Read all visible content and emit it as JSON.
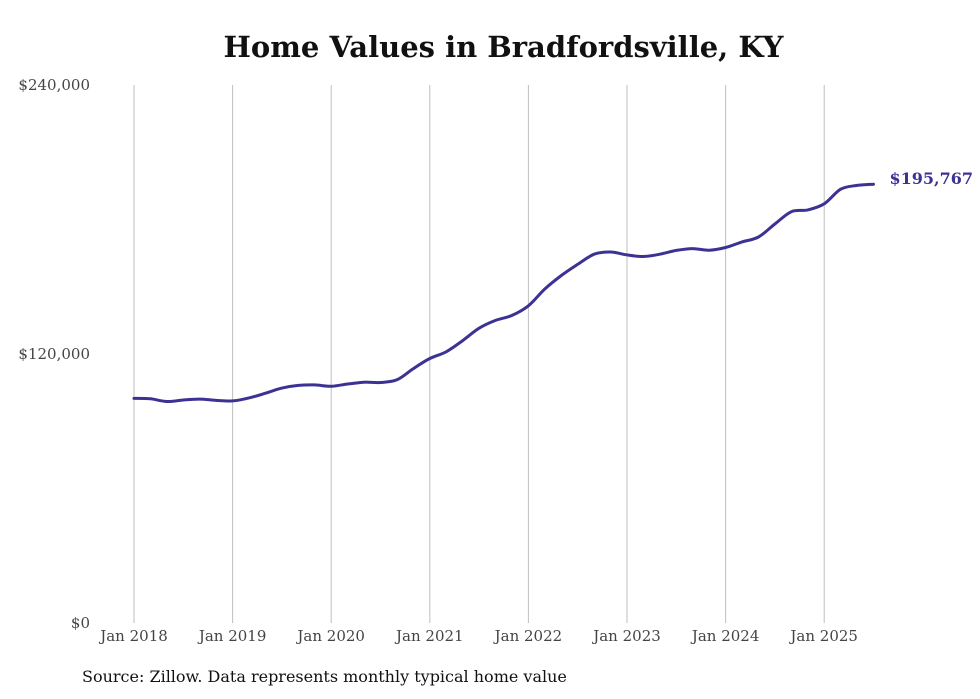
{
  "chart_data": {
    "type": "line",
    "title": "Home Values in Bradfordsville, KY",
    "xlabel": "",
    "ylabel": "",
    "ylim": [
      0,
      240000
    ],
    "xlim": [
      "2018-01",
      "2025-07"
    ],
    "y_ticks": [
      {
        "value": 0,
        "label": "$0"
      },
      {
        "value": 120000,
        "label": "$120,000"
      },
      {
        "value": 240000,
        "label": "$240,000"
      }
    ],
    "x_ticks": [
      {
        "value": "2018-01",
        "label": "Jan 2018"
      },
      {
        "value": "2019-01",
        "label": "Jan 2019"
      },
      {
        "value": "2020-01",
        "label": "Jan 2020"
      },
      {
        "value": "2021-01",
        "label": "Jan 2021"
      },
      {
        "value": "2022-01",
        "label": "Jan 2022"
      },
      {
        "value": "2023-01",
        "label": "Jan 2023"
      },
      {
        "value": "2024-01",
        "label": "Jan 2024"
      },
      {
        "value": "2025-01",
        "label": "Jan 2025"
      }
    ],
    "grid": "vertical",
    "color": "#3b3294",
    "end_label": "$195,767",
    "series": [
      {
        "points": [
          [
            "2018-01",
            100200
          ],
          [
            "2018-03",
            100000
          ],
          [
            "2018-05",
            98800
          ],
          [
            "2018-07",
            99500
          ],
          [
            "2018-09",
            99900
          ],
          [
            "2018-11",
            99300
          ],
          [
            "2019-01",
            99100
          ],
          [
            "2019-03",
            100400
          ],
          [
            "2019-05",
            102500
          ],
          [
            "2019-07",
            104800
          ],
          [
            "2019-09",
            106000
          ],
          [
            "2019-11",
            106200
          ],
          [
            "2020-01",
            105600
          ],
          [
            "2020-03",
            106600
          ],
          [
            "2020-05",
            107400
          ],
          [
            "2020-07",
            107300
          ],
          [
            "2020-09",
            108500
          ],
          [
            "2020-11",
            113500
          ],
          [
            "2021-01",
            118000
          ],
          [
            "2021-03",
            121000
          ],
          [
            "2021-05",
            126000
          ],
          [
            "2021-07",
            131500
          ],
          [
            "2021-09",
            135000
          ],
          [
            "2021-11",
            137200
          ],
          [
            "2022-01",
            141500
          ],
          [
            "2022-03",
            149000
          ],
          [
            "2022-05",
            155000
          ],
          [
            "2022-07",
            160000
          ],
          [
            "2022-09",
            164500
          ],
          [
            "2022-11",
            165500
          ],
          [
            "2023-01",
            164200
          ],
          [
            "2023-03",
            163500
          ],
          [
            "2023-05",
            164500
          ],
          [
            "2023-07",
            166200
          ],
          [
            "2023-09",
            167000
          ],
          [
            "2023-11",
            166300
          ],
          [
            "2024-01",
            167500
          ],
          [
            "2024-03",
            170000
          ],
          [
            "2024-05",
            172200
          ],
          [
            "2024-07",
            178000
          ],
          [
            "2024-09",
            183500
          ],
          [
            "2024-11",
            184300
          ],
          [
            "2025-01",
            187000
          ],
          [
            "2025-03",
            193500
          ],
          [
            "2025-05",
            195200
          ],
          [
            "2025-07",
            195767
          ]
        ]
      }
    ]
  },
  "footer": {
    "source": "Source: Zillow. Data represents monthly typical home value"
  }
}
